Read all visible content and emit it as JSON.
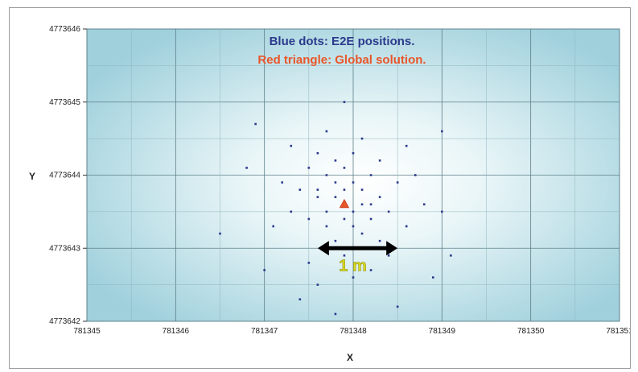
{
  "chart_data": {
    "type": "scatter",
    "title": "",
    "xlabel": "X",
    "ylabel": "Y",
    "xlim": [
      781345,
      781351
    ],
    "ylim": [
      4773642,
      4773646
    ],
    "x_ticks": [
      781345,
      781346,
      781347,
      781348,
      781349,
      781350,
      781351
    ],
    "y_ticks": [
      4773642,
      4773643,
      4773644,
      4773645,
      4773646
    ],
    "x_tick_labels": [
      "781345",
      "781346",
      "781347",
      "781348",
      "781349",
      "781350",
      "781351"
    ],
    "y_tick_labels": [
      "4773642",
      "4773643",
      "4773644",
      "4773645",
      "4773646"
    ],
    "grid": true,
    "annotations": [
      {
        "text": "Blue dots: E2E positions.",
        "color": "#2b3a8c"
      },
      {
        "text": "Red triangle: Global solution.",
        "color": "#e8562a"
      }
    ],
    "scale_bar": {
      "label": "1 m",
      "x_start": 781347.6,
      "x_end": 781348.5,
      "y": 4773643.0,
      "color": "#d8d820"
    },
    "series": [
      {
        "name": "E2E positions",
        "color": "#2b3a8c",
        "points": [
          [
            781347.9,
            4773643.6
          ],
          [
            781348.1,
            4773643.8
          ],
          [
            781347.7,
            4773643.5
          ],
          [
            781348.2,
            4773643.4
          ],
          [
            781347.8,
            4773643.9
          ],
          [
            781348.0,
            4773643.3
          ],
          [
            781347.6,
            4773643.7
          ],
          [
            781348.3,
            4773643.7
          ],
          [
            781347.9,
            4773644.1
          ],
          [
            781348.1,
            4773643.2
          ],
          [
            781347.5,
            4773643.4
          ],
          [
            781348.4,
            4773643.5
          ],
          [
            781347.7,
            4773644.0
          ],
          [
            781348.2,
            4773644.0
          ],
          [
            781347.4,
            4773643.8
          ],
          [
            781348.5,
            4773643.9
          ],
          [
            781347.8,
            4773643.1
          ],
          [
            781348.0,
            4773644.3
          ],
          [
            781347.3,
            4773643.5
          ],
          [
            781348.6,
            4773643.3
          ],
          [
            781347.6,
            4773644.3
          ],
          [
            781348.3,
            4773644.2
          ],
          [
            781347.9,
            4773642.9
          ],
          [
            781348.1,
            4773644.5
          ],
          [
            781347.2,
            4773643.9
          ],
          [
            781348.7,
            4773644.0
          ],
          [
            781347.5,
            4773642.8
          ],
          [
            781348.4,
            4773642.9
          ],
          [
            781347.7,
            4773644.6
          ],
          [
            781348.0,
            4773642.6
          ],
          [
            781347.1,
            4773643.3
          ],
          [
            781348.8,
            4773643.6
          ],
          [
            781347.3,
            4773644.4
          ],
          [
            781348.6,
            4773644.4
          ],
          [
            781347.6,
            4773642.5
          ],
          [
            781348.2,
            4773642.7
          ],
          [
            781346.8,
            4773644.1
          ],
          [
            781349.0,
            4773643.5
          ],
          [
            781347.0,
            4773642.7
          ],
          [
            781348.9,
            4773642.6
          ],
          [
            781346.5,
            4773643.2
          ],
          [
            781349.1,
            4773642.9
          ],
          [
            781347.9,
            4773645.0
          ],
          [
            781347.8,
            4773642.1
          ],
          [
            781347.4,
            4773642.3
          ],
          [
            781348.5,
            4773642.2
          ],
          [
            781346.9,
            4773644.7
          ],
          [
            781349.0,
            4773644.6
          ],
          [
            781347.6,
            4773643.8
          ],
          [
            781347.9,
            4773643.4
          ],
          [
            781348.0,
            4773643.9
          ],
          [
            781347.8,
            4773643.7
          ],
          [
            781348.1,
            4773643.6
          ],
          [
            781347.7,
            4773643.3
          ],
          [
            781348.2,
            4773643.6
          ],
          [
            781347.9,
            4773643.8
          ],
          [
            781348.0,
            4773643.5
          ],
          [
            781347.8,
            4773644.2
          ],
          [
            781348.3,
            4773643.1
          ],
          [
            781347.5,
            4773644.1
          ]
        ]
      },
      {
        "name": "Global solution",
        "color": "#e8562a",
        "points": [
          [
            781347.9,
            4773643.6
          ]
        ]
      }
    ]
  }
}
